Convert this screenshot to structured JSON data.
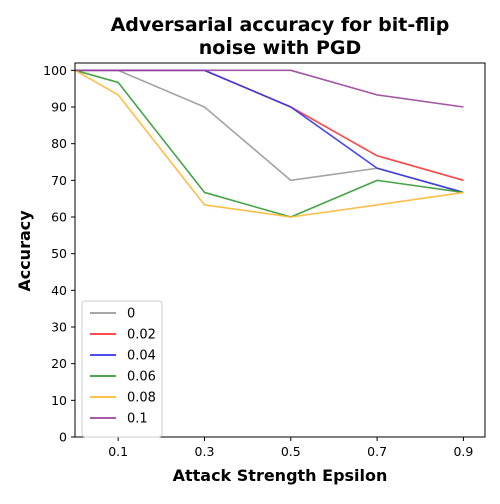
{
  "chart_data": {
    "type": "line",
    "title_lines": [
      "Adversarial accuracy for bit-flip",
      "noise with PGD"
    ],
    "xlabel": "Attack Strength Epsilon",
    "ylabel": "Accuracy",
    "x": [
      0.0,
      0.1,
      0.3,
      0.5,
      0.7,
      0.9
    ],
    "xlim": [
      0.0,
      0.95
    ],
    "xticks": [
      0.1,
      0.3,
      0.5,
      0.7,
      0.9
    ],
    "xtick_labels": [
      "0.1",
      "0.3",
      "0.5",
      "0.7",
      "0.9"
    ],
    "ylim": [
      0,
      102
    ],
    "yticks": [
      0,
      10,
      20,
      30,
      40,
      50,
      60,
      70,
      80,
      90,
      100
    ],
    "ytick_labels": [
      "0",
      "10",
      "20",
      "30",
      "40",
      "50",
      "60",
      "70",
      "80",
      "90",
      "100"
    ],
    "grid": false,
    "legend_position": "bottom-left",
    "series": [
      {
        "name": "0",
        "color": "#999999",
        "values": [
          100,
          100,
          90,
          70,
          73.3,
          66.7
        ]
      },
      {
        "name": "0.02",
        "color": "#ff3333",
        "values": [
          100,
          100,
          100,
          90,
          76.7,
          70
        ]
      },
      {
        "name": "0.04",
        "color": "#3333ee",
        "values": [
          100,
          100,
          100,
          90,
          73.3,
          66.7
        ]
      },
      {
        "name": "0.06",
        "color": "#339933",
        "values": [
          100,
          96.7,
          66.7,
          60,
          70,
          66.7
        ]
      },
      {
        "name": "0.08",
        "color": "#ffb733",
        "values": [
          100,
          93.3,
          63.3,
          60,
          63.3,
          66.7
        ]
      },
      {
        "name": "0.1",
        "color": "#994499",
        "values": [
          100,
          100,
          100,
          100,
          93.3,
          90
        ]
      }
    ]
  }
}
